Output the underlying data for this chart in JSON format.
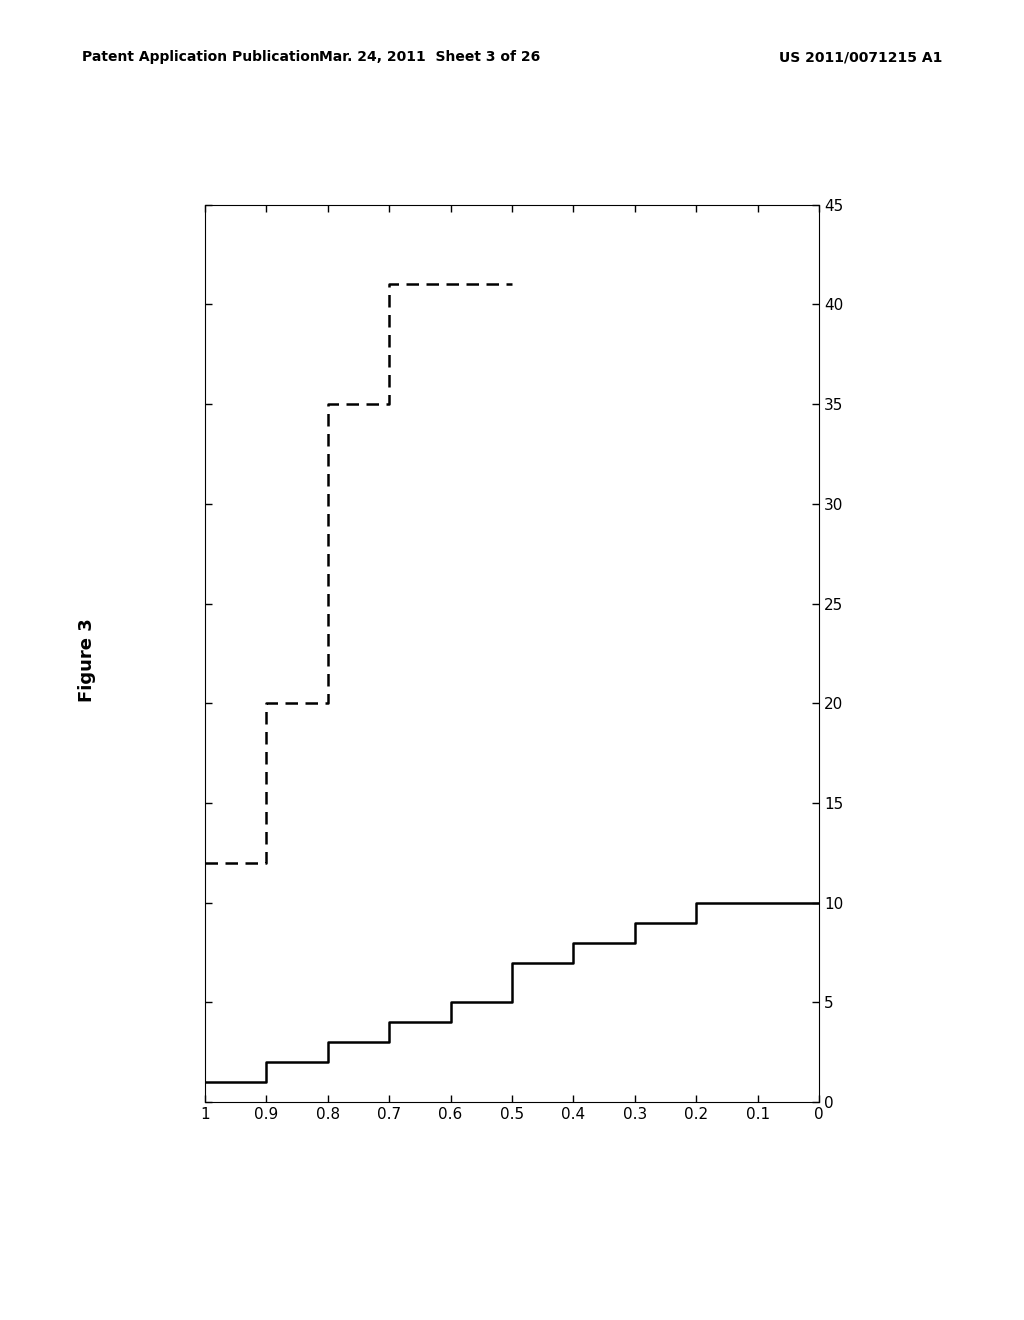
{
  "header_left": "Patent Application Publication",
  "header_mid": "Mar. 24, 2011  Sheet 3 of 26",
  "header_right": "US 2011/0071215 A1",
  "figure_label": "Figure 3",
  "background_color": "#ffffff",
  "line_color": "#000000",
  "solid_line": {
    "x": [
      1.0,
      0.9,
      0.9,
      0.8,
      0.8,
      0.7,
      0.7,
      0.6,
      0.6,
      0.5,
      0.5,
      0.4,
      0.4,
      0.3,
      0.3,
      0.2,
      0.2,
      0.1,
      0.0
    ],
    "y": [
      1,
      1,
      2,
      2,
      3,
      3,
      4,
      4,
      5,
      5,
      7,
      7,
      8,
      8,
      9,
      9,
      10,
      10,
      10
    ]
  },
  "dashed_line": {
    "x": [
      1.0,
      0.9,
      0.9,
      0.8,
      0.8,
      0.7,
      0.7,
      0.6,
      0.5
    ],
    "y": [
      12,
      12,
      20,
      20,
      35,
      35,
      41,
      41,
      41
    ]
  },
  "xlim": [
    1.0,
    0.0
  ],
  "ylim": [
    0,
    45
  ],
  "xticks": [
    1.0,
    0.9,
    0.8,
    0.7,
    0.6,
    0.5,
    0.4,
    0.3,
    0.2,
    0.1,
    0.0
  ],
  "xticklabels": [
    "1",
    "0.9",
    "0.8",
    "0.7",
    "0.6",
    "0.5",
    "0.4",
    "0.3",
    "0.2",
    "0.1",
    "0"
  ],
  "yticks": [
    0,
    5,
    10,
    15,
    20,
    25,
    30,
    35,
    40,
    45
  ],
  "yticklabels": [
    "0",
    "5",
    "10",
    "15",
    "20",
    "25",
    "30",
    "35",
    "40",
    "45"
  ],
  "header_fontsize": 10,
  "tick_fontsize": 11,
  "figure_label_fontsize": 13
}
